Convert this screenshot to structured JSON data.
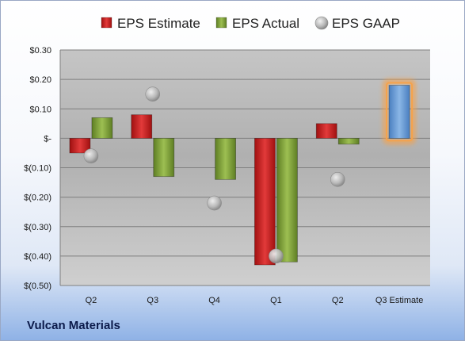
{
  "company": "Vulcan Materials",
  "colors": {
    "estimate": "#cc1f1f",
    "actual": "#82a33a",
    "gaap": "#b9b9b9",
    "next_estimate": "#6fa0d8",
    "highlight": "#f6a24a"
  },
  "chart_data": {
    "type": "bar",
    "title": "",
    "xlabel": "",
    "ylabel": "",
    "categories": [
      "Q2",
      "Q3",
      "Q4",
      "Q1",
      "Q2",
      "Q3 Estimate"
    ],
    "series": [
      {
        "name": "EPS Estimate",
        "values": [
          -0.05,
          0.08,
          null,
          -0.43,
          0.05,
          0.18
        ]
      },
      {
        "name": "EPS Actual",
        "values": [
          0.07,
          -0.13,
          -0.14,
          -0.42,
          -0.02,
          null
        ]
      },
      {
        "name": "EPS GAAP",
        "values": [
          -0.06,
          0.15,
          -0.22,
          -0.4,
          -0.14,
          null
        ]
      }
    ],
    "ylim": [
      -0.5,
      0.3
    ],
    "yticks": [
      0.3,
      0.2,
      0.1,
      0,
      -0.1,
      -0.2,
      -0.3,
      -0.4,
      -0.5
    ],
    "ytick_labels": [
      "$0.30",
      "$0.20",
      "$0.10",
      "$-",
      "$(0.10)",
      "$(0.20)",
      "$(0.30)",
      "$(0.40)",
      "$(0.50)"
    ],
    "legend": [
      "EPS Estimate",
      "EPS Actual",
      "EPS GAAP"
    ],
    "legend_position": "top",
    "grid": true,
    "highlight_category": "Q3 Estimate"
  }
}
